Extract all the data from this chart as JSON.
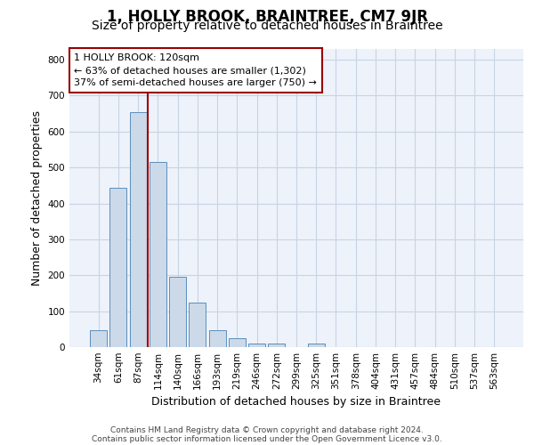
{
  "title": "1, HOLLY BROOK, BRAINTREE, CM7 9JR",
  "subtitle": "Size of property relative to detached houses in Braintree",
  "xlabel": "Distribution of detached houses by size in Braintree",
  "ylabel": "Number of detached properties",
  "categories": [
    "34sqm",
    "61sqm",
    "87sqm",
    "114sqm",
    "140sqm",
    "166sqm",
    "193sqm",
    "219sqm",
    "246sqm",
    "272sqm",
    "299sqm",
    "325sqm",
    "351sqm",
    "378sqm",
    "404sqm",
    "431sqm",
    "457sqm",
    "484sqm",
    "510sqm",
    "537sqm",
    "563sqm"
  ],
  "values": [
    47,
    443,
    655,
    515,
    195,
    125,
    47,
    25,
    10,
    10,
    0,
    10,
    0,
    0,
    0,
    0,
    0,
    0,
    0,
    0,
    0
  ],
  "bar_color": "#ccd9e8",
  "bar_edge_color": "#5a8fbe",
  "grid_color": "#c8d4e4",
  "background_color": "#eef2fa",
  "vline_x_index": 2,
  "vline_color": "#990000",
  "annotation_text": "1 HOLLY BROOK: 120sqm\n← 63% of detached houses are smaller (1,302)\n37% of semi-detached houses are larger (750) →",
  "annotation_box_color": "#ffffff",
  "annotation_box_edge_color": "#990000",
  "ylim": [
    0,
    830
  ],
  "yticks": [
    0,
    100,
    200,
    300,
    400,
    500,
    600,
    700,
    800
  ],
  "footer_line1": "Contains HM Land Registry data © Crown copyright and database right 2024.",
  "footer_line2": "Contains public sector information licensed under the Open Government Licence v3.0.",
  "title_fontsize": 12,
  "subtitle_fontsize": 10,
  "xlabel_fontsize": 9,
  "ylabel_fontsize": 9,
  "tick_fontsize": 7.5,
  "footer_fontsize": 6.5,
  "annotation_fontsize": 8
}
